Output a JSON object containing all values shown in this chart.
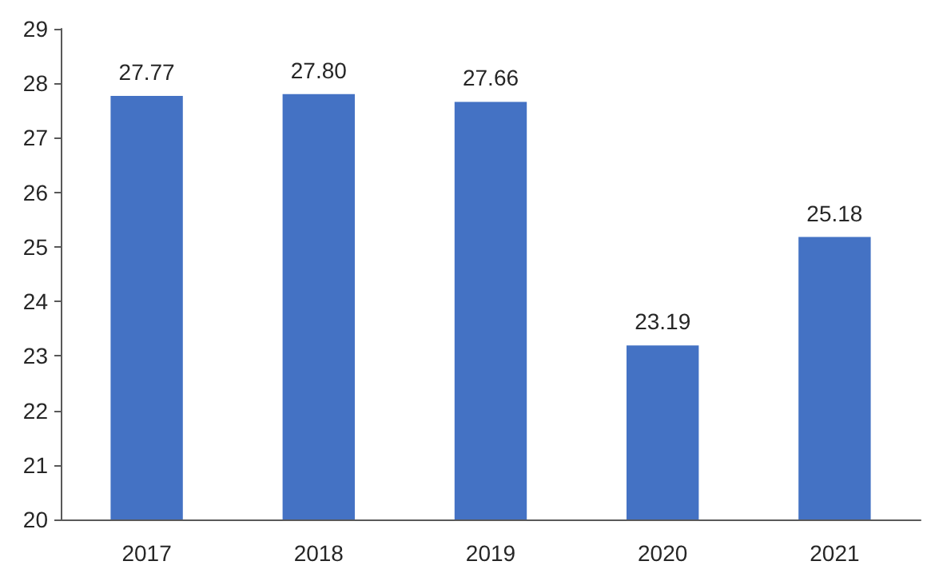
{
  "chart_data": {
    "type": "bar",
    "categories": [
      "2017",
      "2018",
      "2019",
      "2020",
      "2021"
    ],
    "values": [
      27.77,
      27.8,
      27.66,
      23.19,
      25.18
    ],
    "value_labels": [
      "27.77",
      "27.80",
      "27.66",
      "23.19",
      "25.18"
    ],
    "color": "#4472c4",
    "ylim": [
      20,
      29
    ],
    "yticks": [
      20,
      21,
      22,
      23,
      24,
      25,
      26,
      27,
      28,
      29
    ]
  }
}
